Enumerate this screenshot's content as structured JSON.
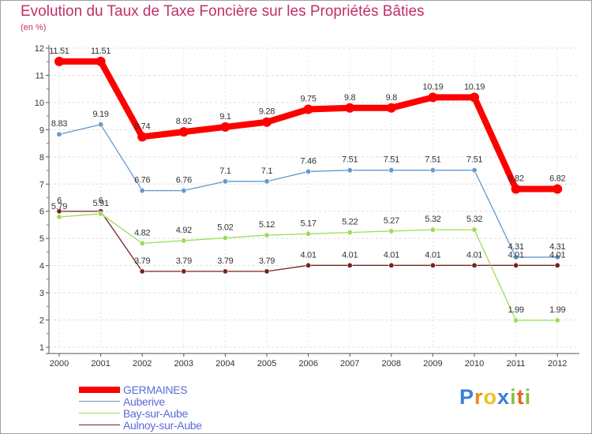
{
  "chart_data": {
    "type": "line",
    "title": "Evolution du Taux de Taxe Foncière sur les Propriétés Bâties",
    "subtitle": "(en %)",
    "xlabel": "",
    "ylabel": "",
    "ylim": [
      1,
      12
    ],
    "yticks": [
      "1",
      "2",
      "3",
      "4",
      "5",
      "6",
      "7",
      "8",
      "9",
      "10",
      "11",
      "12"
    ],
    "x": [
      "2000",
      "2001",
      "2002",
      "2003",
      "2004",
      "2005",
      "2006",
      "2007",
      "2008",
      "2009",
      "2010",
      "2011",
      "2012"
    ],
    "series": [
      {
        "name": "GERMAINES",
        "color": "#ff0000",
        "values": [
          11.51,
          11.51,
          8.74,
          8.92,
          9.1,
          9.28,
          9.75,
          9.8,
          9.8,
          10.19,
          10.19,
          6.82,
          6.82
        ],
        "labels": [
          "11.51",
          "11.51",
          "8.74",
          "8.92",
          "9.1",
          "9.28",
          "9.75",
          "9.8",
          "9.8",
          "10.19",
          "10.19",
          "6.82",
          "6.82"
        ]
      },
      {
        "name": "Auberive",
        "color": "#6699cc",
        "values": [
          8.83,
          9.19,
          6.76,
          6.76,
          7.1,
          7.1,
          7.46,
          7.51,
          7.51,
          7.51,
          7.51,
          4.31,
          4.31
        ],
        "labels": [
          "8.83",
          "9.19",
          "6.76",
          "6.76",
          "7.1",
          "7.1",
          "7.46",
          "7.51",
          "7.51",
          "7.51",
          "7.51",
          "4.31",
          "4.31"
        ]
      },
      {
        "name": "Bay-sur-Aube",
        "color": "#99dd55",
        "values": [
          5.79,
          5.91,
          4.82,
          4.92,
          5.02,
          5.12,
          5.17,
          5.22,
          5.27,
          5.32,
          5.32,
          1.99,
          1.99
        ],
        "labels": [
          "5.79",
          "5.91",
          "4.82",
          "4.92",
          "5.02",
          "5.12",
          "5.17",
          "5.22",
          "5.27",
          "5.32",
          "5.32",
          "1.99",
          "1.99"
        ]
      },
      {
        "name": "Aulnoy-sur-Aube",
        "color": "#772222",
        "values": [
          6,
          6,
          3.79,
          3.79,
          3.79,
          3.79,
          4.01,
          4.01,
          4.01,
          4.01,
          4.01,
          4.01,
          4.01
        ],
        "labels": [
          "6",
          "6",
          "3.79",
          "3.79",
          "3.79",
          "3.79",
          "4.01",
          "4.01",
          "4.01",
          "4.01",
          "4.01",
          "4.01",
          "4.01"
        ]
      }
    ],
    "legend_position": "bottom-left"
  },
  "brand": {
    "name": "Proxiti",
    "letters": [
      "P",
      "r",
      "o",
      "x",
      "i",
      "t",
      "i"
    ],
    "letter_colors": [
      "#3a7fd8",
      "#e88a20",
      "#f0c020",
      "#3a7fd8",
      "#88c040",
      "#e86020",
      "#88c040"
    ]
  }
}
